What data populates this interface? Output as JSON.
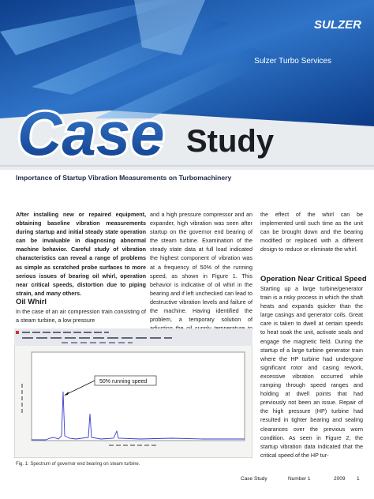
{
  "header": {
    "logo": "SULZER",
    "division": "Sulzer Turbo Services",
    "case": "Case",
    "study": "Study"
  },
  "title": "Importance of Startup Vibration Measurements on Turbomachinery",
  "intro": "After installing new or repaired equipment, obtaining baseline vibration measurements during startup and initial steady state operation can be invaluable in diagnosing abnormal machine behavior. Careful study of vibration characteristics can reveal a range of problems as simple as scratched probe surfaces to more serious issues of bearing oil whirl, operation near critical speeds, distortion due to piping strain, and many others.",
  "sections": [
    {
      "heading": "Oil Whirl",
      "paragraphs": [
        "In the case of an air compression train consisting of a steam turbine, a low pressure",
        "and a high pressure compressor and an expander, high vibration was seen after startup on the governor end bearing of the steam turbine. Examination of the steady state data at full load indicated the highest component of vibration was at a frequency of 50% of the running speed, as shown in Figure 1. This behavior is indicative of oil whirl in the bearing and if left unchecked can lead to destructive vibration levels and failure of the machine. Having identified the problem, a temporary solution of adjusting the oil supply temperature to reduce",
        "the effect of the whirl can be implemented until such time as the unit can be brought down and the bearing modified or replaced with a different design to reduce or eliminate the whirl."
      ]
    },
    {
      "heading": "Operation Near Critical Speed",
      "paragraphs": [
        "Starting up a large turbine/generator train is a risky process in which the shaft heats and expands quicker than the large casings and generator coils. Great care is taken to dwell at certain speeds to heat soak the unit, activate seals and engage the magnetic field. During the startup of a large turbine generator train where the HP turbine had undergone significant rotor and casing rework, excessive vibration occurred while ramping through speed ranges and holding at dwell points that had previously not been an issue. Repair of the high pressure (HP) turbine had resulted in tighter bearing and sealing clearances over the previous worn condition. As seen in Figure 2, the startup vibration data indicated that the critical speed of the HP tur-"
      ]
    }
  ],
  "figure": {
    "annotation": "50% running speed",
    "caption": "Fig. 1: Spectrum of governor end bearing on steam turbine."
  },
  "footer": {
    "label": "Case Study",
    "number": "Number 1",
    "year": "2009",
    "page": "1"
  }
}
